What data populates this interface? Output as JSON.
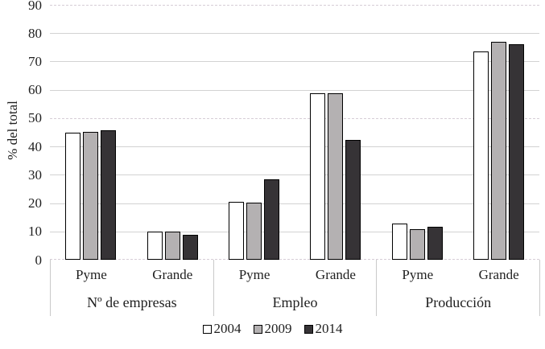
{
  "page": {
    "background": "#ffffff"
  },
  "chart_data": {
    "type": "bar",
    "title": "",
    "xlabel": "",
    "ylabel": "% del total",
    "ylim": [
      0,
      90
    ],
    "ytick_step": 10,
    "grid": true,
    "legend_position": "bottom",
    "series_names": [
      "2004",
      "2009",
      "2014"
    ],
    "groups": [
      {
        "category": "Nº de empresas",
        "clusters": [
          {
            "label": "Pyme",
            "values": [
              45.0,
              45.1,
              45.7
            ]
          },
          {
            "label": "Grande",
            "values": [
              9.9,
              10.0,
              8.8
            ]
          }
        ]
      },
      {
        "category": "Empleo",
        "clusters": [
          {
            "label": "Pyme",
            "values": [
              20.4,
              20.1,
              28.3
            ]
          },
          {
            "label": "Grande",
            "values": [
              58.8,
              58.7,
              42.4
            ]
          }
        ]
      },
      {
        "category": "Producción",
        "clusters": [
          {
            "label": "Pyme",
            "values": [
              12.8,
              10.9,
              11.6
            ]
          },
          {
            "label": "Grande",
            "values": [
              73.6,
              76.9,
              76.0
            ]
          }
        ]
      }
    ]
  },
  "legend": {
    "items": [
      "2004",
      "2009",
      "2014"
    ]
  },
  "colors": {
    "series_fills": [
      "#ffffff",
      "#b4b1b2",
      "#363336"
    ],
    "bar_border": "#000000",
    "gridline_solid": "#d2d2d2",
    "gridline_dashed": "#d6cdd6",
    "label_divider": "#c9c9c9",
    "text": "#1f1f1f"
  }
}
